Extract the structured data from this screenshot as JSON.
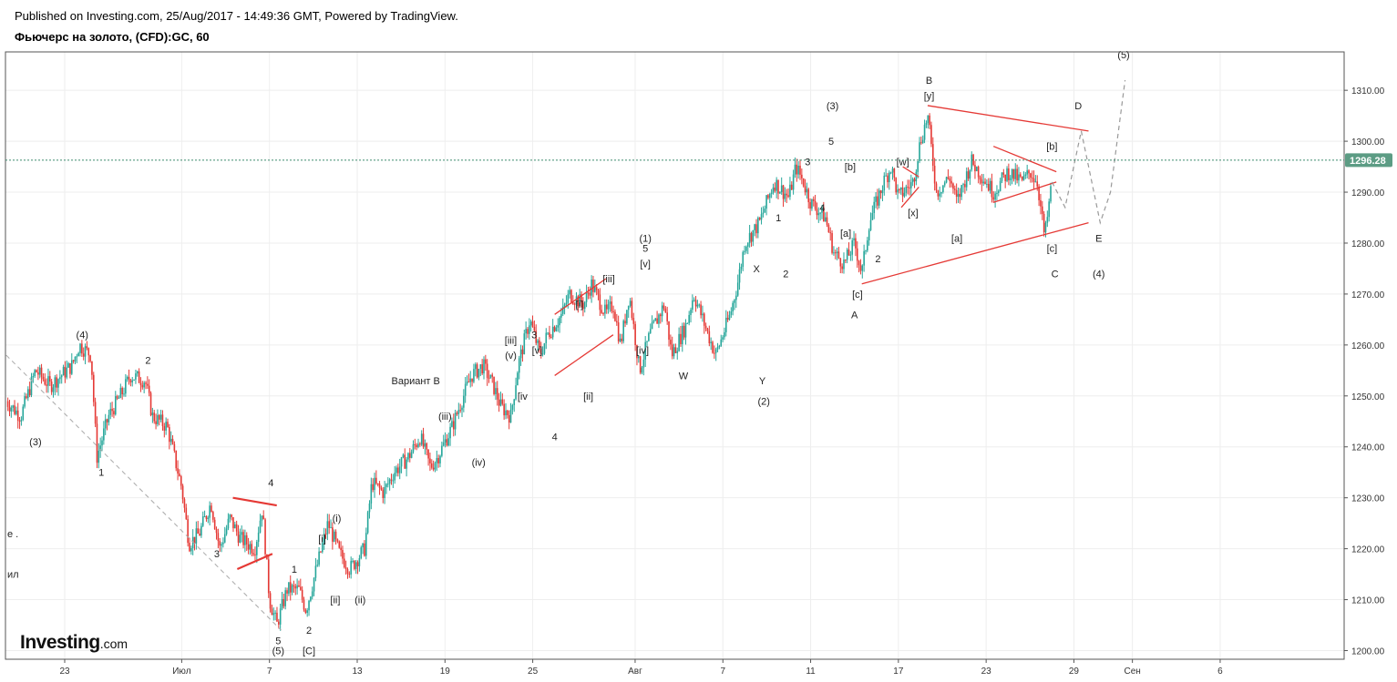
{
  "header": {
    "published": "Published on Investing.com, 25/Aug/2017 - 14:49:36 GMT, Powered by TradingView.",
    "title": "Фьючерс на золото, (CFD):GC, 60"
  },
  "logo": {
    "text": "Investing",
    "suffix": ".com"
  },
  "colors": {
    "up": "#26a69a",
    "down": "#e53935",
    "trendline": "#e53935",
    "projection": "#999999",
    "price_badge": "#5c9c84",
    "grid": "#eeeeee"
  },
  "chart_data": {
    "type": "candlestick",
    "symbol": "GC",
    "timeframe": "60",
    "ylim": [
      1198,
      1316
    ],
    "y_ticks": [
      1200,
      1210,
      1220,
      1230,
      1240,
      1250,
      1260,
      1270,
      1280,
      1290,
      1300,
      1310
    ],
    "y_tick_labels": [
      "1200.00",
      "1210.00",
      "1220.00",
      "1230.00",
      "1240.00",
      "1250.00",
      "1260.00",
      "1270.00",
      "1280.00",
      "1290.00",
      "1300.00",
      "1310.00"
    ],
    "x_ticks": [
      {
        "label": "23",
        "day": 0
      },
      {
        "label": "Июл",
        "day": 8
      },
      {
        "label": "7",
        "day": 14
      },
      {
        "label": "13",
        "day": 20
      },
      {
        "label": "19",
        "day": 26
      },
      {
        "label": "25",
        "day": 32
      },
      {
        "label": "Авг",
        "day": 39
      },
      {
        "label": "7",
        "day": 45
      },
      {
        "label": "11",
        "day": 51
      },
      {
        "label": "17",
        "day": 57
      },
      {
        "label": "23",
        "day": 63
      },
      {
        "label": "29",
        "day": 69
      },
      {
        "label": "Сен",
        "day": 73
      },
      {
        "label": "6",
        "day": 79
      }
    ],
    "last_price": 1296.28,
    "last_price_label": "1296.28",
    "price_path": [
      [
        -4,
        1249
      ],
      [
        -3,
        1246
      ],
      [
        -2,
        1255
      ],
      [
        -1,
        1252
      ],
      [
        0.5,
        1256
      ],
      [
        1,
        1260
      ],
      [
        1.8,
        1258
      ],
      [
        2.2,
        1238
      ],
      [
        3,
        1246
      ],
      [
        4,
        1251
      ],
      [
        4.5,
        1254
      ],
      [
        5.5,
        1253
      ],
      [
        6,
        1246
      ],
      [
        7,
        1244
      ],
      [
        8,
        1232
      ],
      [
        8.5,
        1221
      ],
      [
        9.2,
        1223
      ],
      [
        10,
        1229
      ],
      [
        10.6,
        1220
      ],
      [
        11.3,
        1226
      ],
      [
        12,
        1222
      ],
      [
        13,
        1220
      ],
      [
        13.5,
        1228
      ],
      [
        14,
        1210
      ],
      [
        14.5,
        1205
      ],
      [
        15.2,
        1212
      ],
      [
        16,
        1212
      ],
      [
        16.5,
        1208
      ],
      [
        17.2,
        1216
      ],
      [
        18,
        1225
      ],
      [
        18.8,
        1219
      ],
      [
        19.5,
        1216
      ],
      [
        20.5,
        1220
      ],
      [
        21,
        1233
      ],
      [
        21.8,
        1231
      ],
      [
        22.5,
        1235
      ],
      [
        23.5,
        1238
      ],
      [
        24.3,
        1242
      ],
      [
        25,
        1236
      ],
      [
        25.5,
        1238
      ],
      [
        26.5,
        1244
      ],
      [
        27,
        1248
      ],
      [
        27.8,
        1254
      ],
      [
        28.6,
        1256
      ],
      [
        29.3,
        1252
      ],
      [
        29.8,
        1248
      ],
      [
        30.5,
        1246
      ],
      [
        31,
        1256
      ],
      [
        31.8,
        1265
      ],
      [
        32.5,
        1258
      ],
      [
        33,
        1262
      ],
      [
        34,
        1266
      ],
      [
        34.5,
        1270
      ],
      [
        35.5,
        1268
      ],
      [
        36,
        1272
      ],
      [
        37,
        1266
      ],
      [
        37.5,
        1268
      ],
      [
        38,
        1260
      ],
      [
        38.6,
        1270
      ],
      [
        39.3,
        1255
      ],
      [
        40,
        1262
      ],
      [
        41,
        1268
      ],
      [
        41.5,
        1258
      ],
      [
        42.5,
        1264
      ],
      [
        43,
        1270
      ],
      [
        44,
        1262
      ],
      [
        44.5,
        1258
      ],
      [
        45.5,
        1266
      ],
      [
        46,
        1272
      ],
      [
        46.5,
        1280
      ],
      [
        47.5,
        1284
      ],
      [
        48,
        1288
      ],
      [
        48.5,
        1292
      ],
      [
        49.5,
        1289
      ],
      [
        50,
        1295
      ],
      [
        50.5,
        1292
      ],
      [
        51,
        1288
      ],
      [
        52,
        1285
      ],
      [
        52.6,
        1278
      ],
      [
        53.3,
        1276
      ],
      [
        54,
        1280
      ],
      [
        54.5,
        1274
      ],
      [
        55,
        1284
      ],
      [
        56,
        1292
      ],
      [
        56.5,
        1295
      ],
      [
        57,
        1289
      ],
      [
        58,
        1292
      ],
      [
        58.5,
        1300
      ],
      [
        59,
        1305
      ],
      [
        59.6,
        1290
      ],
      [
        60.5,
        1293
      ],
      [
        61,
        1288
      ],
      [
        62,
        1296
      ],
      [
        63,
        1292
      ],
      [
        63.5,
        1290
      ],
      [
        64.5,
        1294
      ],
      [
        65.5,
        1292
      ],
      [
        66,
        1294
      ],
      [
        66.5,
        1292
      ],
      [
        67,
        1281
      ],
      [
        67.5,
        1292
      ]
    ],
    "trendlines": [
      {
        "points": [
          [
            -4,
            1258
          ],
          [
            14.8,
            1204
          ]
        ],
        "style": "dashed-gray"
      },
      {
        "points": [
          [
            11.5,
            1230
          ],
          [
            14.5,
            1228.5
          ]
        ],
        "style": "solid-red-thick"
      },
      {
        "points": [
          [
            11.8,
            1216
          ],
          [
            14.2,
            1219
          ]
        ],
        "style": "solid-red-thick"
      },
      {
        "points": [
          [
            33.5,
            1266
          ],
          [
            37,
            1273
          ]
        ],
        "style": "solid-red"
      },
      {
        "points": [
          [
            33.5,
            1254
          ],
          [
            37.5,
            1262
          ]
        ],
        "style": "solid-red"
      },
      {
        "points": [
          [
            54.5,
            1272
          ],
          [
            70,
            1284
          ]
        ],
        "style": "solid-red"
      },
      {
        "points": [
          [
            59,
            1307
          ],
          [
            70,
            1302
          ]
        ],
        "style": "solid-red"
      },
      {
        "points": [
          [
            63.5,
            1299
          ],
          [
            67.8,
            1294
          ]
        ],
        "style": "solid-red"
      },
      {
        "points": [
          [
            63.5,
            1288
          ],
          [
            67.8,
            1292
          ]
        ],
        "style": "solid-red"
      },
      {
        "points": [
          [
            57.2,
            1287
          ],
          [
            58.4,
            1291
          ]
        ],
        "style": "solid-red"
      },
      {
        "points": [
          [
            57.3,
            1295
          ],
          [
            58.4,
            1293
          ]
        ],
        "style": "solid-red"
      }
    ],
    "projection": [
      [
        67.5,
        1292
      ],
      [
        68.4,
        1287
      ],
      [
        69.5,
        1302
      ],
      [
        70.8,
        1284
      ],
      [
        71.5,
        1290
      ],
      [
        72.5,
        1312
      ]
    ],
    "annotations": [
      {
        "text": "Вариант B",
        "day": 24,
        "price": 1253
      },
      {
        "text": "(3)",
        "day": -2,
        "price": 1241
      },
      {
        "text": "(4)",
        "day": 1.2,
        "price": 1262
      },
      {
        "text": "1",
        "day": 2.5,
        "price": 1235
      },
      {
        "text": "2",
        "day": 5.7,
        "price": 1257
      },
      {
        "text": "3",
        "day": 10.4,
        "price": 1219
      },
      {
        "text": "4",
        "day": 14.1,
        "price": 1233
      },
      {
        "text": "5",
        "day": 14.6,
        "price": 1202
      },
      {
        "text": "(5)",
        "day": 14.6,
        "price": 1200
      },
      {
        "text": "1",
        "day": 15.7,
        "price": 1216
      },
      {
        "text": "2",
        "day": 16.7,
        "price": 1204
      },
      {
        "text": "[C]",
        "day": 16.7,
        "price": 1200
      },
      {
        "text": "[i]",
        "day": 17.6,
        "price": 1222
      },
      {
        "text": "(i)",
        "day": 18.6,
        "price": 1226
      },
      {
        "text": "[ii]",
        "day": 18.5,
        "price": 1210
      },
      {
        "text": "(ii)",
        "day": 20.2,
        "price": 1210
      },
      {
        "text": "(iii)",
        "day": 26,
        "price": 1246
      },
      {
        "text": "(iv)",
        "day": 28.3,
        "price": 1237
      },
      {
        "text": "[iii]",
        "day": 30.5,
        "price": 1261
      },
      {
        "text": "(v)",
        "day": 30.5,
        "price": 1258
      },
      {
        "text": "3",
        "day": 32.1,
        "price": 1262
      },
      {
        "text": "[v]",
        "day": 32.3,
        "price": 1259
      },
      {
        "text": "[iv",
        "day": 31.3,
        "price": 1250
      },
      {
        "text": "4",
        "day": 33.5,
        "price": 1242
      },
      {
        "text": "[i]",
        "day": 35.2,
        "price": 1268
      },
      {
        "text": "[ii]",
        "day": 35.8,
        "price": 1250
      },
      {
        "text": "[iii]",
        "day": 37.2,
        "price": 1273
      },
      {
        "text": "(1)",
        "day": 39.7,
        "price": 1281
      },
      {
        "text": "5",
        "day": 39.7,
        "price": 1279
      },
      {
        "text": "[v]",
        "day": 39.7,
        "price": 1276
      },
      {
        "text": "[iv]",
        "day": 39.5,
        "price": 1259
      },
      {
        "text": "W",
        "day": 42.3,
        "price": 1254
      },
      {
        "text": "X",
        "day": 47.3,
        "price": 1275
      },
      {
        "text": "1",
        "day": 48.8,
        "price": 1285
      },
      {
        "text": "2",
        "day": 49.3,
        "price": 1274
      },
      {
        "text": "Y",
        "day": 47.7,
        "price": 1253
      },
      {
        "text": "(2)",
        "day": 47.8,
        "price": 1249
      },
      {
        "text": "3",
        "day": 50.8,
        "price": 1296
      },
      {
        "text": "(3)",
        "day": 52.5,
        "price": 1307
      },
      {
        "text": "5",
        "day": 52.4,
        "price": 1300
      },
      {
        "text": "4",
        "day": 51.8,
        "price": 1287
      },
      {
        "text": "[b]",
        "day": 53.7,
        "price": 1295
      },
      {
        "text": "[a]",
        "day": 53.4,
        "price": 1282
      },
      {
        "text": "2",
        "day": 55.6,
        "price": 1277
      },
      {
        "text": "[c]",
        "day": 54.2,
        "price": 1270
      },
      {
        "text": "A",
        "day": 54,
        "price": 1266
      },
      {
        "text": "[w]",
        "day": 57.3,
        "price": 1296
      },
      {
        "text": "[x]",
        "day": 58,
        "price": 1286
      },
      {
        "text": "B",
        "day": 59.1,
        "price": 1312
      },
      {
        "text": "[y]",
        "day": 59.1,
        "price": 1309
      },
      {
        "text": "[a]",
        "day": 61,
        "price": 1281
      },
      {
        "text": "[b]",
        "day": 67.5,
        "price": 1299
      },
      {
        "text": "[c]",
        "day": 67.5,
        "price": 1279
      },
      {
        "text": "C",
        "day": 67.7,
        "price": 1274
      },
      {
        "text": "D",
        "day": 69.3,
        "price": 1307
      },
      {
        "text": "E",
        "day": 70.7,
        "price": 1281
      },
      {
        "text": "(4)",
        "day": 70.7,
        "price": 1274
      },
      {
        "text": "(5)",
        "day": 72.4,
        "price": 1317
      },
      {
        "text": "e .",
        "day": -4,
        "price": 1223
      },
      {
        "text": "ил",
        "day": -4,
        "price": 1215
      }
    ]
  }
}
